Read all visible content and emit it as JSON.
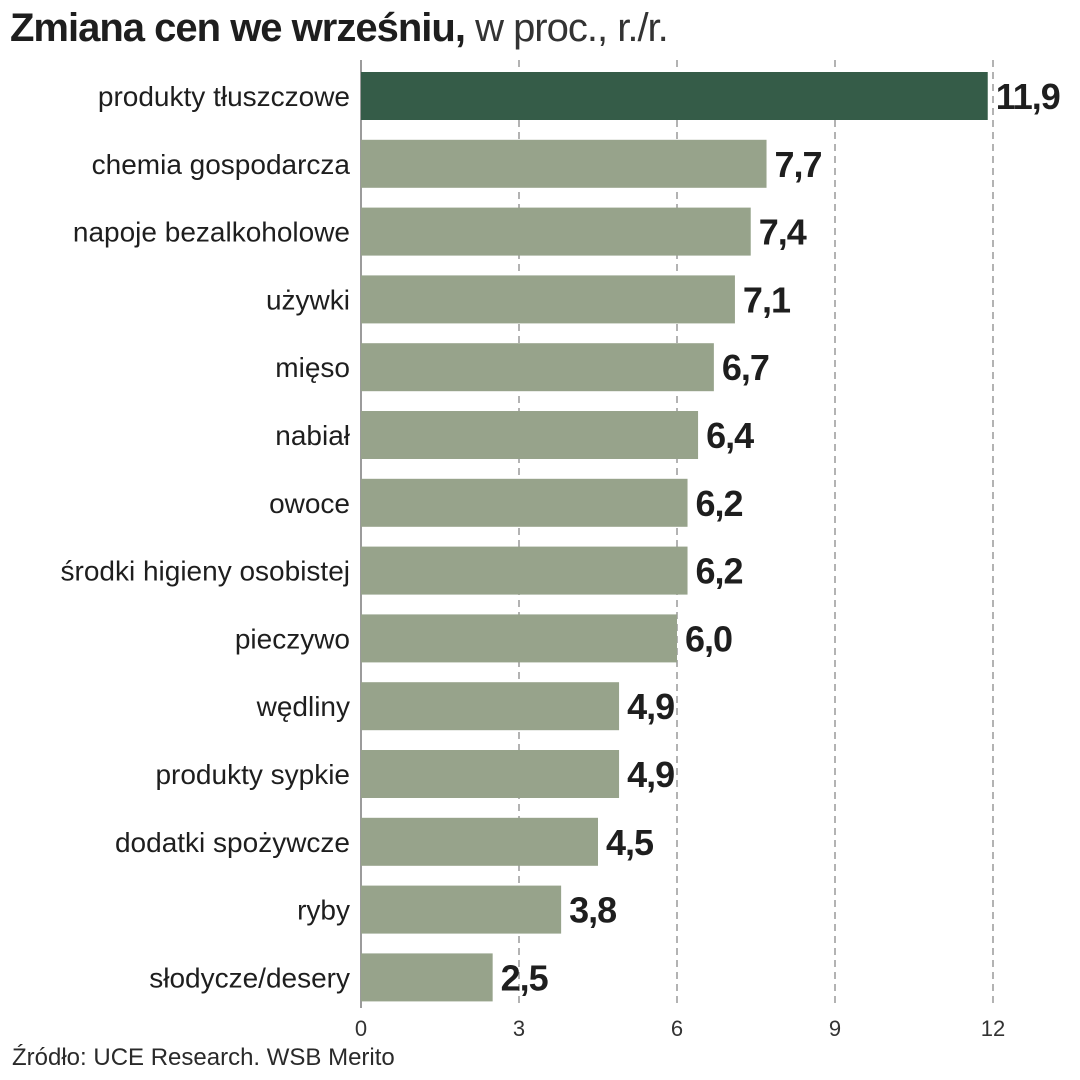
{
  "title": {
    "main": "Zmiana cen we wrześniu,",
    "sub": "w proc., r./r."
  },
  "source": "Źródło: UCE Research. WSB Merito",
  "colors": {
    "highlight": "#355c48",
    "bar": "#97a38b",
    "grid": "#9a9a9a",
    "text": "#1e1e1e"
  },
  "chart_data": {
    "type": "bar",
    "orientation": "horizontal",
    "categories": [
      "produkty tłuszczowe",
      "chemia gospodarcza",
      "napoje bezalkoholowe",
      "używki",
      "mięso",
      "nabiał",
      "owoce",
      "środki higieny osobistej",
      "pieczywo",
      "wędliny",
      "produkty sypkie",
      "dodatki spożywcze",
      "ryby",
      "słodycze/desery"
    ],
    "values": [
      11.9,
      7.7,
      7.4,
      7.1,
      6.7,
      6.4,
      6.2,
      6.2,
      6.0,
      4.9,
      4.9,
      4.5,
      3.8,
      2.5
    ],
    "value_labels": [
      "11,9",
      "7,7",
      "7,4",
      "7,1",
      "6,7",
      "6,4",
      "6,2",
      "6,2",
      "6,0",
      "4,9",
      "4,9",
      "4,5",
      "3,8",
      "2,5"
    ],
    "highlight_index": 0,
    "xlim": [
      0,
      12
    ],
    "xticks": [
      0,
      3,
      6,
      9,
      12
    ],
    "xtick_labels": [
      "0",
      "3",
      "6",
      "9",
      "12"
    ],
    "grid": true,
    "grid_style": "dashed-vertical",
    "legend": "none"
  }
}
